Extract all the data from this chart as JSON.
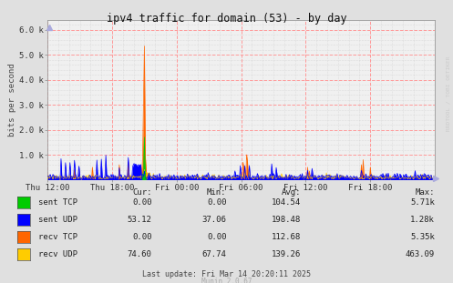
{
  "title": "ipv4 traffic for domain (53) - by day",
  "ylabel": "bits per second",
  "ylim": [
    0,
    6400
  ],
  "yticks": [
    1000,
    2000,
    3000,
    4000,
    5000,
    6000
  ],
  "ytick_labels": [
    "1.0 k",
    "2.0 k",
    "3.0 k",
    "4.0 k",
    "5.0 k",
    "6.0 k"
  ],
  "bg_color": "#e0e0e0",
  "plot_bg_color": "#f0f0f0",
  "colors": {
    "sent_tcp": "#00cc00",
    "sent_udp": "#0000ff",
    "recv_tcp": "#ff6600",
    "recv_udp": "#ffcc00"
  },
  "table": {
    "headers": [
      "Cur:",
      "Min:",
      "Avg:",
      "Max:"
    ],
    "rows": [
      [
        "sent TCP",
        "0.00",
        "0.00",
        "104.54",
        "5.71k"
      ],
      [
        "sent UDP",
        "53.12",
        "37.06",
        "198.48",
        "1.28k"
      ],
      [
        "recv TCP",
        "0.00",
        "0.00",
        "112.68",
        "5.35k"
      ],
      [
        "recv UDP",
        "74.60",
        "67.74",
        "139.26",
        "463.09"
      ]
    ]
  },
  "footer": "Last update: Fri Mar 14 20:20:11 2025",
  "munin_version": "Munin 2.0.67",
  "watermark": "RRDTOOL / TOBI OETIKER",
  "xticklabels": [
    "Thu 12:00",
    "Thu 18:00",
    "Fri 00:00",
    "Fri 06:00",
    "Fri 12:00",
    "Fri 18:00"
  ],
  "xtick_positions": [
    0,
    72,
    144,
    216,
    288,
    360
  ],
  "total_points": 432
}
